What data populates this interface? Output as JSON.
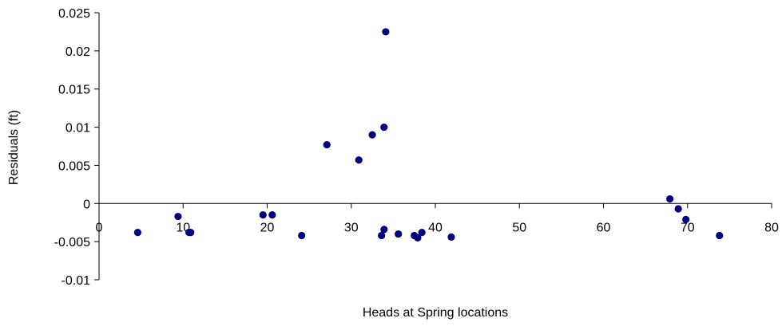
{
  "chart_data": {
    "type": "scatter",
    "title": "",
    "xlabel": "Heads at Spring locations",
    "ylabel": "Residuals (ft)",
    "xlim": [
      0,
      80
    ],
    "ylim": [
      -0.01,
      0.025
    ],
    "x_ticks": [
      0,
      10,
      20,
      30,
      40,
      50,
      60,
      70,
      80
    ],
    "y_ticks": [
      -0.01,
      -0.005,
      0,
      0.005,
      0.01,
      0.015,
      0.02,
      0.025
    ],
    "x_tick_labels": [
      "0",
      "10",
      "20",
      "30",
      "40",
      "50",
      "60",
      "70",
      "80"
    ],
    "y_tick_labels": [
      "-0.01",
      "-0.005",
      "0",
      "0.005",
      "0.01",
      "0.015",
      "0.02",
      "0.025"
    ],
    "grid": false,
    "legend": "none",
    "marker_color": "#000080",
    "points": [
      {
        "x": 4.6,
        "y": -0.0038
      },
      {
        "x": 9.4,
        "y": -0.0017
      },
      {
        "x": 10.7,
        "y": -0.0038
      },
      {
        "x": 10.9,
        "y": -0.0038
      },
      {
        "x": 19.5,
        "y": -0.0015
      },
      {
        "x": 20.6,
        "y": -0.0015
      },
      {
        "x": 24.1,
        "y": -0.0042
      },
      {
        "x": 27.1,
        "y": 0.0077
      },
      {
        "x": 30.9,
        "y": 0.0057
      },
      {
        "x": 32.5,
        "y": 0.009
      },
      {
        "x": 33.6,
        "y": -0.0042
      },
      {
        "x": 33.9,
        "y": 0.01
      },
      {
        "x": 33.9,
        "y": -0.0034
      },
      {
        "x": 34.1,
        "y": 0.0225
      },
      {
        "x": 35.6,
        "y": -0.004
      },
      {
        "x": 37.5,
        "y": -0.0042
      },
      {
        "x": 37.9,
        "y": -0.0045
      },
      {
        "x": 38.4,
        "y": -0.0038
      },
      {
        "x": 41.9,
        "y": -0.0044
      },
      {
        "x": 67.9,
        "y": 0.0006
      },
      {
        "x": 68.9,
        "y": -0.0007
      },
      {
        "x": 69.8,
        "y": -0.0021
      },
      {
        "x": 73.8,
        "y": -0.0042
      }
    ]
  }
}
